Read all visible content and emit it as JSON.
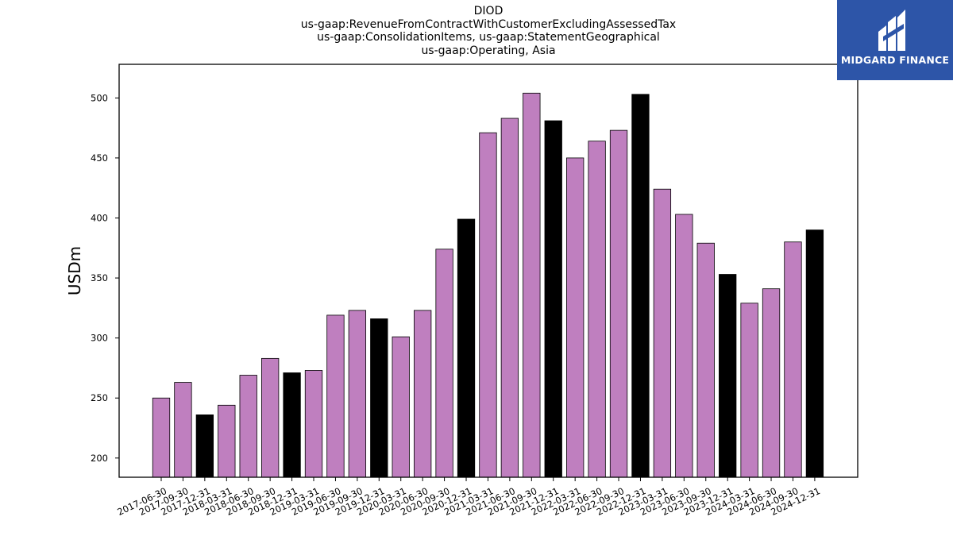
{
  "title_lines": [
    "DIOD",
    "us-gaap:RevenueFromContractWithCustomerExcludingAssessedTax",
    "us-gaap:ConsolidationItems, us-gaap:StatementGeographical",
    "us-gaap:Operating, Asia"
  ],
  "logo": {
    "text": "MIDGARD FINANCE",
    "bg_color": "#2d55a8",
    "icon": "midgard-logo-icon"
  },
  "chart_data": {
    "type": "bar",
    "ylabel": "USDm",
    "xlabel": "",
    "ylim": [
      184,
      528
    ],
    "yticks": [
      200,
      250,
      300,
      350,
      400,
      450,
      500
    ],
    "colors": {
      "quarter": "#bf7fbf",
      "year_end": "#000000",
      "edge": "#000000"
    },
    "categories": [
      "2017-06-30",
      "2017-09-30",
      "2017-12-31",
      "2018-03-31",
      "2018-06-30",
      "2018-09-30",
      "2018-12-31",
      "2019-03-31",
      "2019-06-30",
      "2019-09-30",
      "2019-12-31",
      "2020-03-31",
      "2020-06-30",
      "2020-09-30",
      "2020-12-31",
      "2021-03-31",
      "2021-06-30",
      "2021-09-30",
      "2021-12-31",
      "2022-03-31",
      "2022-06-30",
      "2022-09-30",
      "2022-12-31",
      "2023-03-31",
      "2023-06-30",
      "2023-09-30",
      "2023-12-31",
      "2024-03-31",
      "2024-06-30",
      "2024-09-30",
      "2024-12-31"
    ],
    "values": [
      250,
      263,
      236,
      244,
      269,
      283,
      271,
      273,
      319,
      323,
      316,
      301,
      323,
      374,
      399,
      471,
      483,
      504,
      481,
      450,
      464,
      473,
      503,
      424,
      403,
      379,
      353,
      329,
      341,
      380,
      390
    ]
  }
}
